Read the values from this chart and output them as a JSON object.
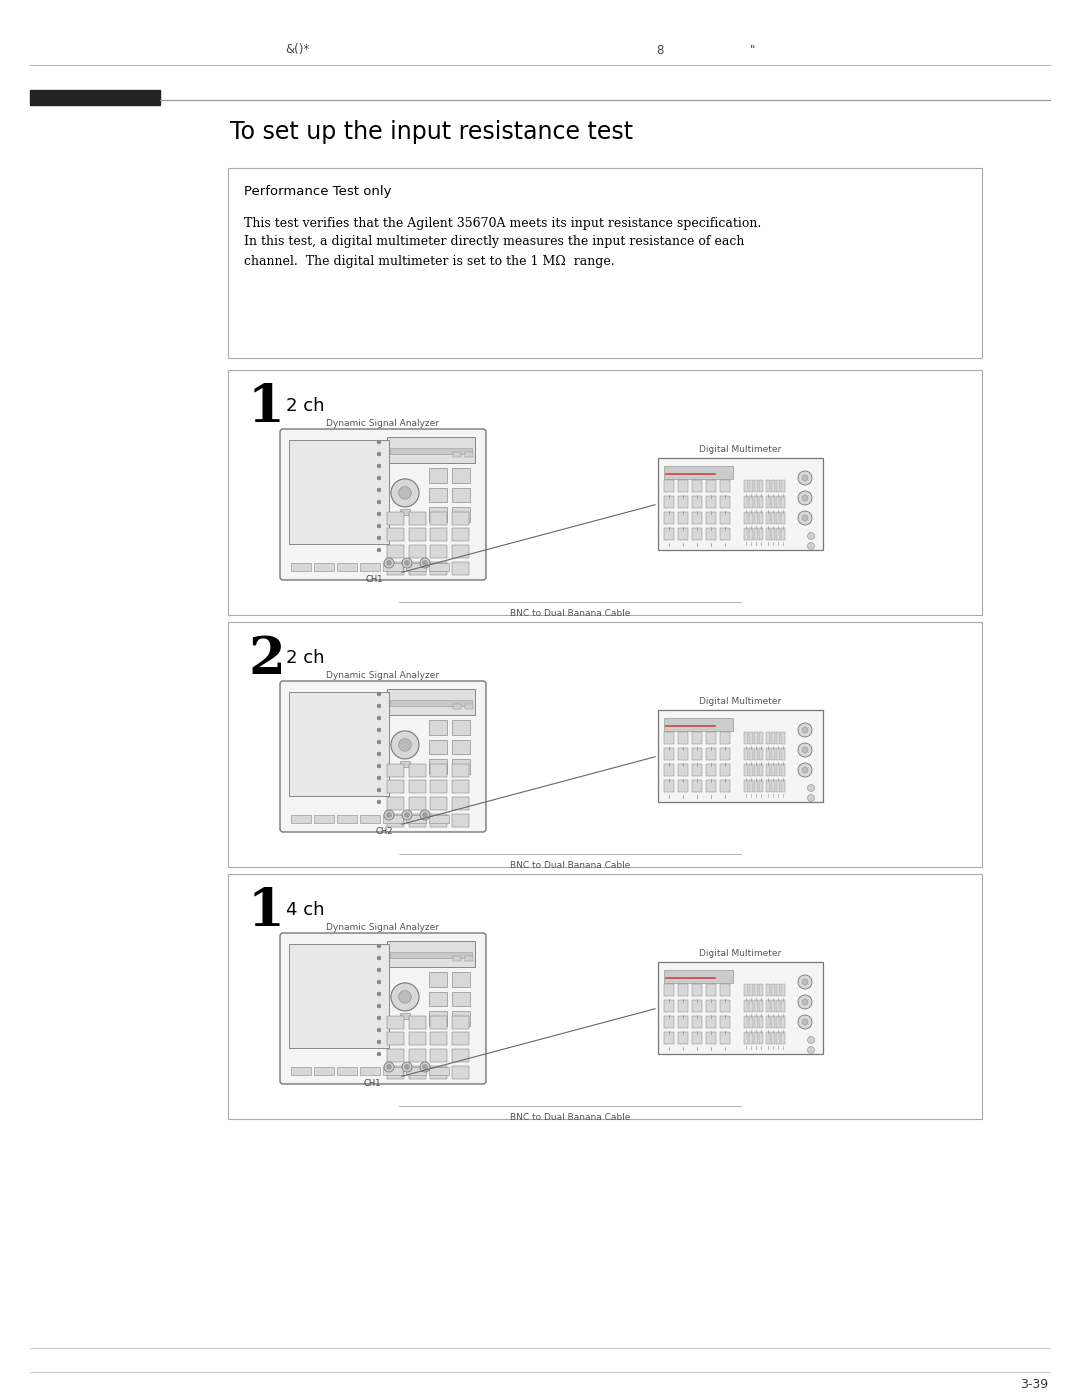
{
  "page_bg": "#ffffff",
  "header_text_left": "&()*",
  "header_text_center": "8",
  "header_text_right": "\"",
  "title": "To set up the input resistance test",
  "footer_text": "3-39",
  "box0_title": "Performance Test only",
  "box0_body_line1": "This test verifies that the Agilent 35670A meets its input resistance specification.",
  "box0_body_line2": "In this test, a digital multimeter directly measures the input resistance of each",
  "box0_body_line3": "channel.  The digital multimeter is set to the 1 MΩ  range.",
  "step1_num": "1",
  "step1_sub": "2 ch",
  "step1_dsa_label": "Dynamic Signal Analyzer",
  "step1_dmm_label": "Digital Multimeter",
  "step1_cable_label": "BNC to Dual Banana Cable",
  "step1_ch_label": "CH1",
  "step2_num": "2",
  "step2_sub": "2 ch",
  "step2_dsa_label": "Dynamic Signal Analyzer",
  "step2_dmm_label": "Digital Multimeter",
  "step2_cable_label": "BNC to Dual Banana Cable",
  "step2_ch_label": "CH2",
  "step3_num": "1",
  "step3_sub": "4 ch",
  "step3_dsa_label": "Dynamic Signal Analyzer",
  "step3_dmm_label": "Digital Multimeter",
  "step3_cable_label": "BNC to Dual Banana Cable",
  "step3_ch_label": "CH1",
  "box_edge_color": "#aaaaaa",
  "thick_bar_color": "#222222",
  "device_edge": "#777777",
  "device_bg": "#f5f5f5",
  "screen_bg": "#e8e8e8",
  "btn_bg": "#d8d8d8",
  "label_color": "#555555",
  "text_color": "#111111"
}
